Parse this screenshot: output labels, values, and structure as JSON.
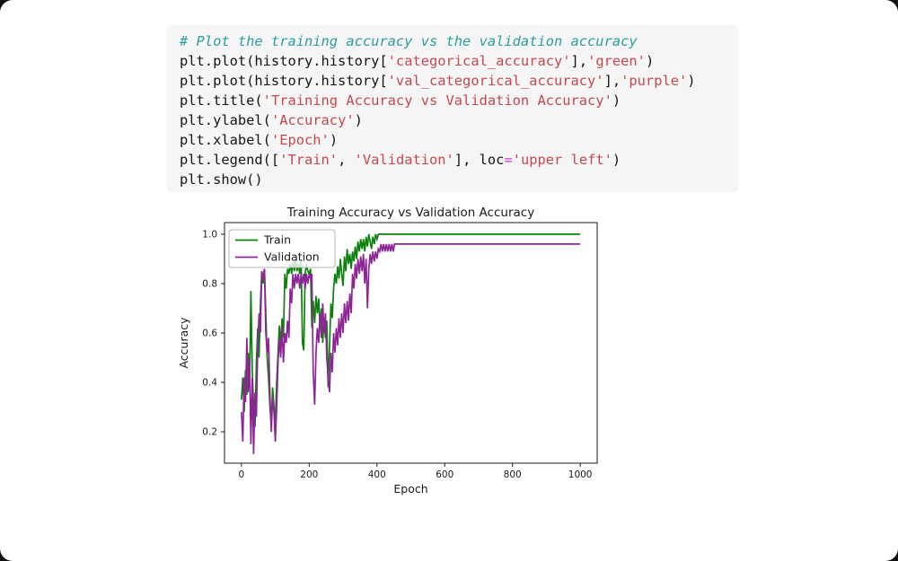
{
  "ui": {
    "card_bg": "#ffffff",
    "code_bg": "#f5f5f6",
    "outside_bg": "#111111"
  },
  "code": {
    "colors": {
      "comment": "#2a9d9f",
      "code": "#141414",
      "str": "#c4494e",
      "op": "#d435d4"
    },
    "lines": [
      [
        {
          "t": "# Plot the training accuracy vs the validation accuracy",
          "c": "comment"
        }
      ],
      [
        {
          "t": "plt.plot(history.history[",
          "c": "code"
        },
        {
          "t": "'categorical_accuracy'",
          "c": "str"
        },
        {
          "t": "],",
          "c": "code"
        },
        {
          "t": "'green'",
          "c": "str"
        },
        {
          "t": ")",
          "c": "code"
        }
      ],
      [
        {
          "t": "plt.plot(history.history[",
          "c": "code"
        },
        {
          "t": "'val_categorical_accuracy'",
          "c": "str"
        },
        {
          "t": "],",
          "c": "code"
        },
        {
          "t": "'purple'",
          "c": "str"
        },
        {
          "t": ")",
          "c": "code"
        }
      ],
      [
        {
          "t": "plt.title(",
          "c": "code"
        },
        {
          "t": "'Training Accuracy vs Validation Accuracy'",
          "c": "str"
        },
        {
          "t": ")",
          "c": "code"
        }
      ],
      [
        {
          "t": "plt.ylabel(",
          "c": "code"
        },
        {
          "t": "'Accuracy'",
          "c": "str"
        },
        {
          "t": ")",
          "c": "code"
        }
      ],
      [
        {
          "t": "plt.xlabel(",
          "c": "code"
        },
        {
          "t": "'Epoch'",
          "c": "str"
        },
        {
          "t": ")",
          "c": "code"
        }
      ],
      [
        {
          "t": "plt.legend([",
          "c": "code"
        },
        {
          "t": "'Train'",
          "c": "str"
        },
        {
          "t": ", ",
          "c": "code"
        },
        {
          "t": "'Validation'",
          "c": "str"
        },
        {
          "t": "], loc",
          "c": "code"
        },
        {
          "t": "=",
          "c": "op"
        },
        {
          "t": "'upper left'",
          "c": "str"
        },
        {
          "t": ")",
          "c": "code"
        }
      ],
      [
        {
          "t": "plt.show()",
          "c": "code"
        }
      ]
    ]
  },
  "chart_data": {
    "type": "line",
    "title": "Training Accuracy vs Validation Accuracy",
    "xlabel": "Epoch",
    "ylabel": "Accuracy",
    "xlim": [
      -50,
      1050
    ],
    "ylim": [
      0.073,
      1.047
    ],
    "xticks": [
      0,
      200,
      400,
      600,
      800,
      1000
    ],
    "yticks": [
      0.2,
      0.4,
      0.6,
      0.8,
      1.0
    ],
    "grid": false,
    "legend": {
      "position": "upper left",
      "entries": [
        {
          "label": "Train",
          "color": "#0c810c"
        },
        {
          "label": "Validation",
          "color": "#8e2596"
        }
      ]
    },
    "series": [
      {
        "name": "Train",
        "color": "#0c810c",
        "points": [
          [
            0,
            0.33
          ],
          [
            4,
            0.42
          ],
          [
            8,
            0.28
          ],
          [
            12,
            0.45
          ],
          [
            16,
            0.35
          ],
          [
            20,
            0.52
          ],
          [
            24,
            0.38
          ],
          [
            28,
            0.77
          ],
          [
            32,
            0.45
          ],
          [
            36,
            0.3
          ],
          [
            40,
            0.22
          ],
          [
            44,
            0.48
          ],
          [
            48,
            0.62
          ],
          [
            52,
            0.5
          ],
          [
            56,
            0.72
          ],
          [
            60,
            0.85
          ],
          [
            64,
            0.8
          ],
          [
            68,
            0.86
          ],
          [
            72,
            0.68
          ],
          [
            76,
            0.5
          ],
          [
            80,
            0.42
          ],
          [
            84,
            0.3
          ],
          [
            88,
            0.23
          ],
          [
            92,
            0.38
          ],
          [
            96,
            0.3
          ],
          [
            100,
            0.24
          ],
          [
            104,
            0.4
          ],
          [
            108,
            0.52
          ],
          [
            112,
            0.63
          ],
          [
            116,
            0.55
          ],
          [
            120,
            0.66
          ],
          [
            124,
            0.58
          ],
          [
            128,
            0.84
          ],
          [
            132,
            0.78
          ],
          [
            136,
            0.86
          ],
          [
            140,
            0.84
          ],
          [
            144,
            0.88
          ],
          [
            148,
            0.84
          ],
          [
            152,
            0.89
          ],
          [
            156,
            0.85
          ],
          [
            160,
            0.9
          ],
          [
            164,
            0.85
          ],
          [
            168,
            0.88
          ],
          [
            172,
            0.84
          ],
          [
            176,
            0.9
          ],
          [
            180,
            0.56
          ],
          [
            184,
            0.53
          ],
          [
            188,
            0.84
          ],
          [
            192,
            0.88
          ],
          [
            196,
            0.85
          ],
          [
            200,
            0.84
          ],
          [
            204,
            0.86
          ],
          [
            208,
            0.62
          ],
          [
            212,
            0.73
          ],
          [
            216,
            0.64
          ],
          [
            220,
            0.75
          ],
          [
            224,
            0.68
          ],
          [
            228,
            0.74
          ],
          [
            232,
            0.62
          ],
          [
            236,
            0.7
          ],
          [
            240,
            0.56
          ],
          [
            244,
            0.66
          ],
          [
            248,
            0.58
          ],
          [
            252,
            0.65
          ],
          [
            256,
            0.38
          ],
          [
            260,
            0.55
          ],
          [
            264,
            0.72
          ],
          [
            268,
            0.66
          ],
          [
            272,
            0.78
          ],
          [
            276,
            0.84
          ],
          [
            280,
            0.8
          ],
          [
            284,
            0.87
          ],
          [
            288,
            0.82
          ],
          [
            292,
            0.9
          ],
          [
            296,
            0.84
          ],
          [
            300,
            0.79
          ],
          [
            304,
            0.91
          ],
          [
            308,
            0.85
          ],
          [
            312,
            0.94
          ],
          [
            316,
            0.88
          ],
          [
            320,
            0.92
          ],
          [
            324,
            0.86
          ],
          [
            328,
            0.93
          ],
          [
            332,
            0.89
          ],
          [
            336,
            0.95
          ],
          [
            340,
            0.9
          ],
          [
            344,
            0.97
          ],
          [
            348,
            0.93
          ],
          [
            352,
            0.98
          ],
          [
            356,
            0.94
          ],
          [
            360,
            0.98
          ],
          [
            364,
            0.93
          ],
          [
            368,
            0.99
          ],
          [
            372,
            0.95
          ],
          [
            376,
            1.0
          ],
          [
            380,
            0.97
          ],
          [
            384,
            0.94
          ],
          [
            388,
            0.99
          ],
          [
            392,
            0.96
          ],
          [
            396,
            1.0
          ],
          [
            400,
            0.98
          ],
          [
            404,
            1.0
          ],
          [
            1000,
            1.0
          ]
        ]
      },
      {
        "name": "Validation",
        "color": "#8e2596",
        "points": [
          [
            0,
            0.28
          ],
          [
            4,
            0.16
          ],
          [
            8,
            0.42
          ],
          [
            12,
            0.32
          ],
          [
            16,
            0.58
          ],
          [
            20,
            0.36
          ],
          [
            24,
            0.5
          ],
          [
            28,
            0.15
          ],
          [
            32,
            0.42
          ],
          [
            36,
            0.11
          ],
          [
            40,
            0.36
          ],
          [
            44,
            0.26
          ],
          [
            48,
            0.55
          ],
          [
            52,
            0.68
          ],
          [
            56,
            0.6
          ],
          [
            60,
            0.85
          ],
          [
            64,
            0.82
          ],
          [
            68,
            0.86
          ],
          [
            72,
            0.6
          ],
          [
            76,
            0.52
          ],
          [
            80,
            0.58
          ],
          [
            84,
            0.35
          ],
          [
            88,
            0.2
          ],
          [
            92,
            0.34
          ],
          [
            96,
            0.28
          ],
          [
            100,
            0.16
          ],
          [
            104,
            0.3
          ],
          [
            108,
            0.48
          ],
          [
            112,
            0.58
          ],
          [
            116,
            0.5
          ],
          [
            120,
            0.63
          ],
          [
            124,
            0.48
          ],
          [
            128,
            0.6
          ],
          [
            132,
            0.56
          ],
          [
            136,
            0.65
          ],
          [
            140,
            0.58
          ],
          [
            144,
            0.78
          ],
          [
            148,
            0.72
          ],
          [
            152,
            0.84
          ],
          [
            156,
            0.78
          ],
          [
            160,
            0.84
          ],
          [
            164,
            0.8
          ],
          [
            168,
            0.84
          ],
          [
            172,
            0.78
          ],
          [
            176,
            0.84
          ],
          [
            180,
            0.8
          ],
          [
            184,
            0.84
          ],
          [
            188,
            0.78
          ],
          [
            192,
            0.84
          ],
          [
            196,
            0.8
          ],
          [
            200,
            0.84
          ],
          [
            204,
            0.82
          ],
          [
            208,
            0.84
          ],
          [
            212,
            0.44
          ],
          [
            216,
            0.31
          ],
          [
            220,
            0.52
          ],
          [
            224,
            0.62
          ],
          [
            228,
            0.56
          ],
          [
            232,
            0.68
          ],
          [
            236,
            0.58
          ],
          [
            240,
            0.72
          ],
          [
            244,
            0.6
          ],
          [
            248,
            0.68
          ],
          [
            252,
            0.5
          ],
          [
            256,
            0.42
          ],
          [
            260,
            0.36
          ],
          [
            264,
            0.52
          ],
          [
            268,
            0.44
          ],
          [
            272,
            0.6
          ],
          [
            276,
            0.52
          ],
          [
            280,
            0.62
          ],
          [
            284,
            0.55
          ],
          [
            288,
            0.66
          ],
          [
            292,
            0.58
          ],
          [
            296,
            0.68
          ],
          [
            300,
            0.6
          ],
          [
            304,
            0.72
          ],
          [
            308,
            0.64
          ],
          [
            312,
            0.73
          ],
          [
            316,
            0.65
          ],
          [
            320,
            0.76
          ],
          [
            324,
            0.68
          ],
          [
            328,
            0.84
          ],
          [
            332,
            0.78
          ],
          [
            336,
            0.88
          ],
          [
            340,
            0.82
          ],
          [
            344,
            0.9
          ],
          [
            348,
            0.84
          ],
          [
            352,
            0.91
          ],
          [
            356,
            0.85
          ],
          [
            360,
            0.92
          ],
          [
            364,
            0.8
          ],
          [
            368,
            0.9
          ],
          [
            372,
            0.7
          ],
          [
            376,
            0.86
          ],
          [
            380,
            0.92
          ],
          [
            384,
            0.88
          ],
          [
            388,
            0.93
          ],
          [
            392,
            0.89
          ],
          [
            396,
            0.93
          ],
          [
            400,
            0.9
          ],
          [
            404,
            0.94
          ],
          [
            408,
            0.93
          ],
          [
            412,
            0.96
          ],
          [
            416,
            0.93
          ],
          [
            420,
            0.96
          ],
          [
            424,
            0.93
          ],
          [
            428,
            0.96
          ],
          [
            432,
            0.93
          ],
          [
            436,
            0.96
          ],
          [
            440,
            0.93
          ],
          [
            444,
            0.96
          ],
          [
            448,
            0.93
          ],
          [
            452,
            0.96
          ],
          [
            456,
            0.96
          ],
          [
            1000,
            0.96
          ]
        ]
      }
    ]
  }
}
